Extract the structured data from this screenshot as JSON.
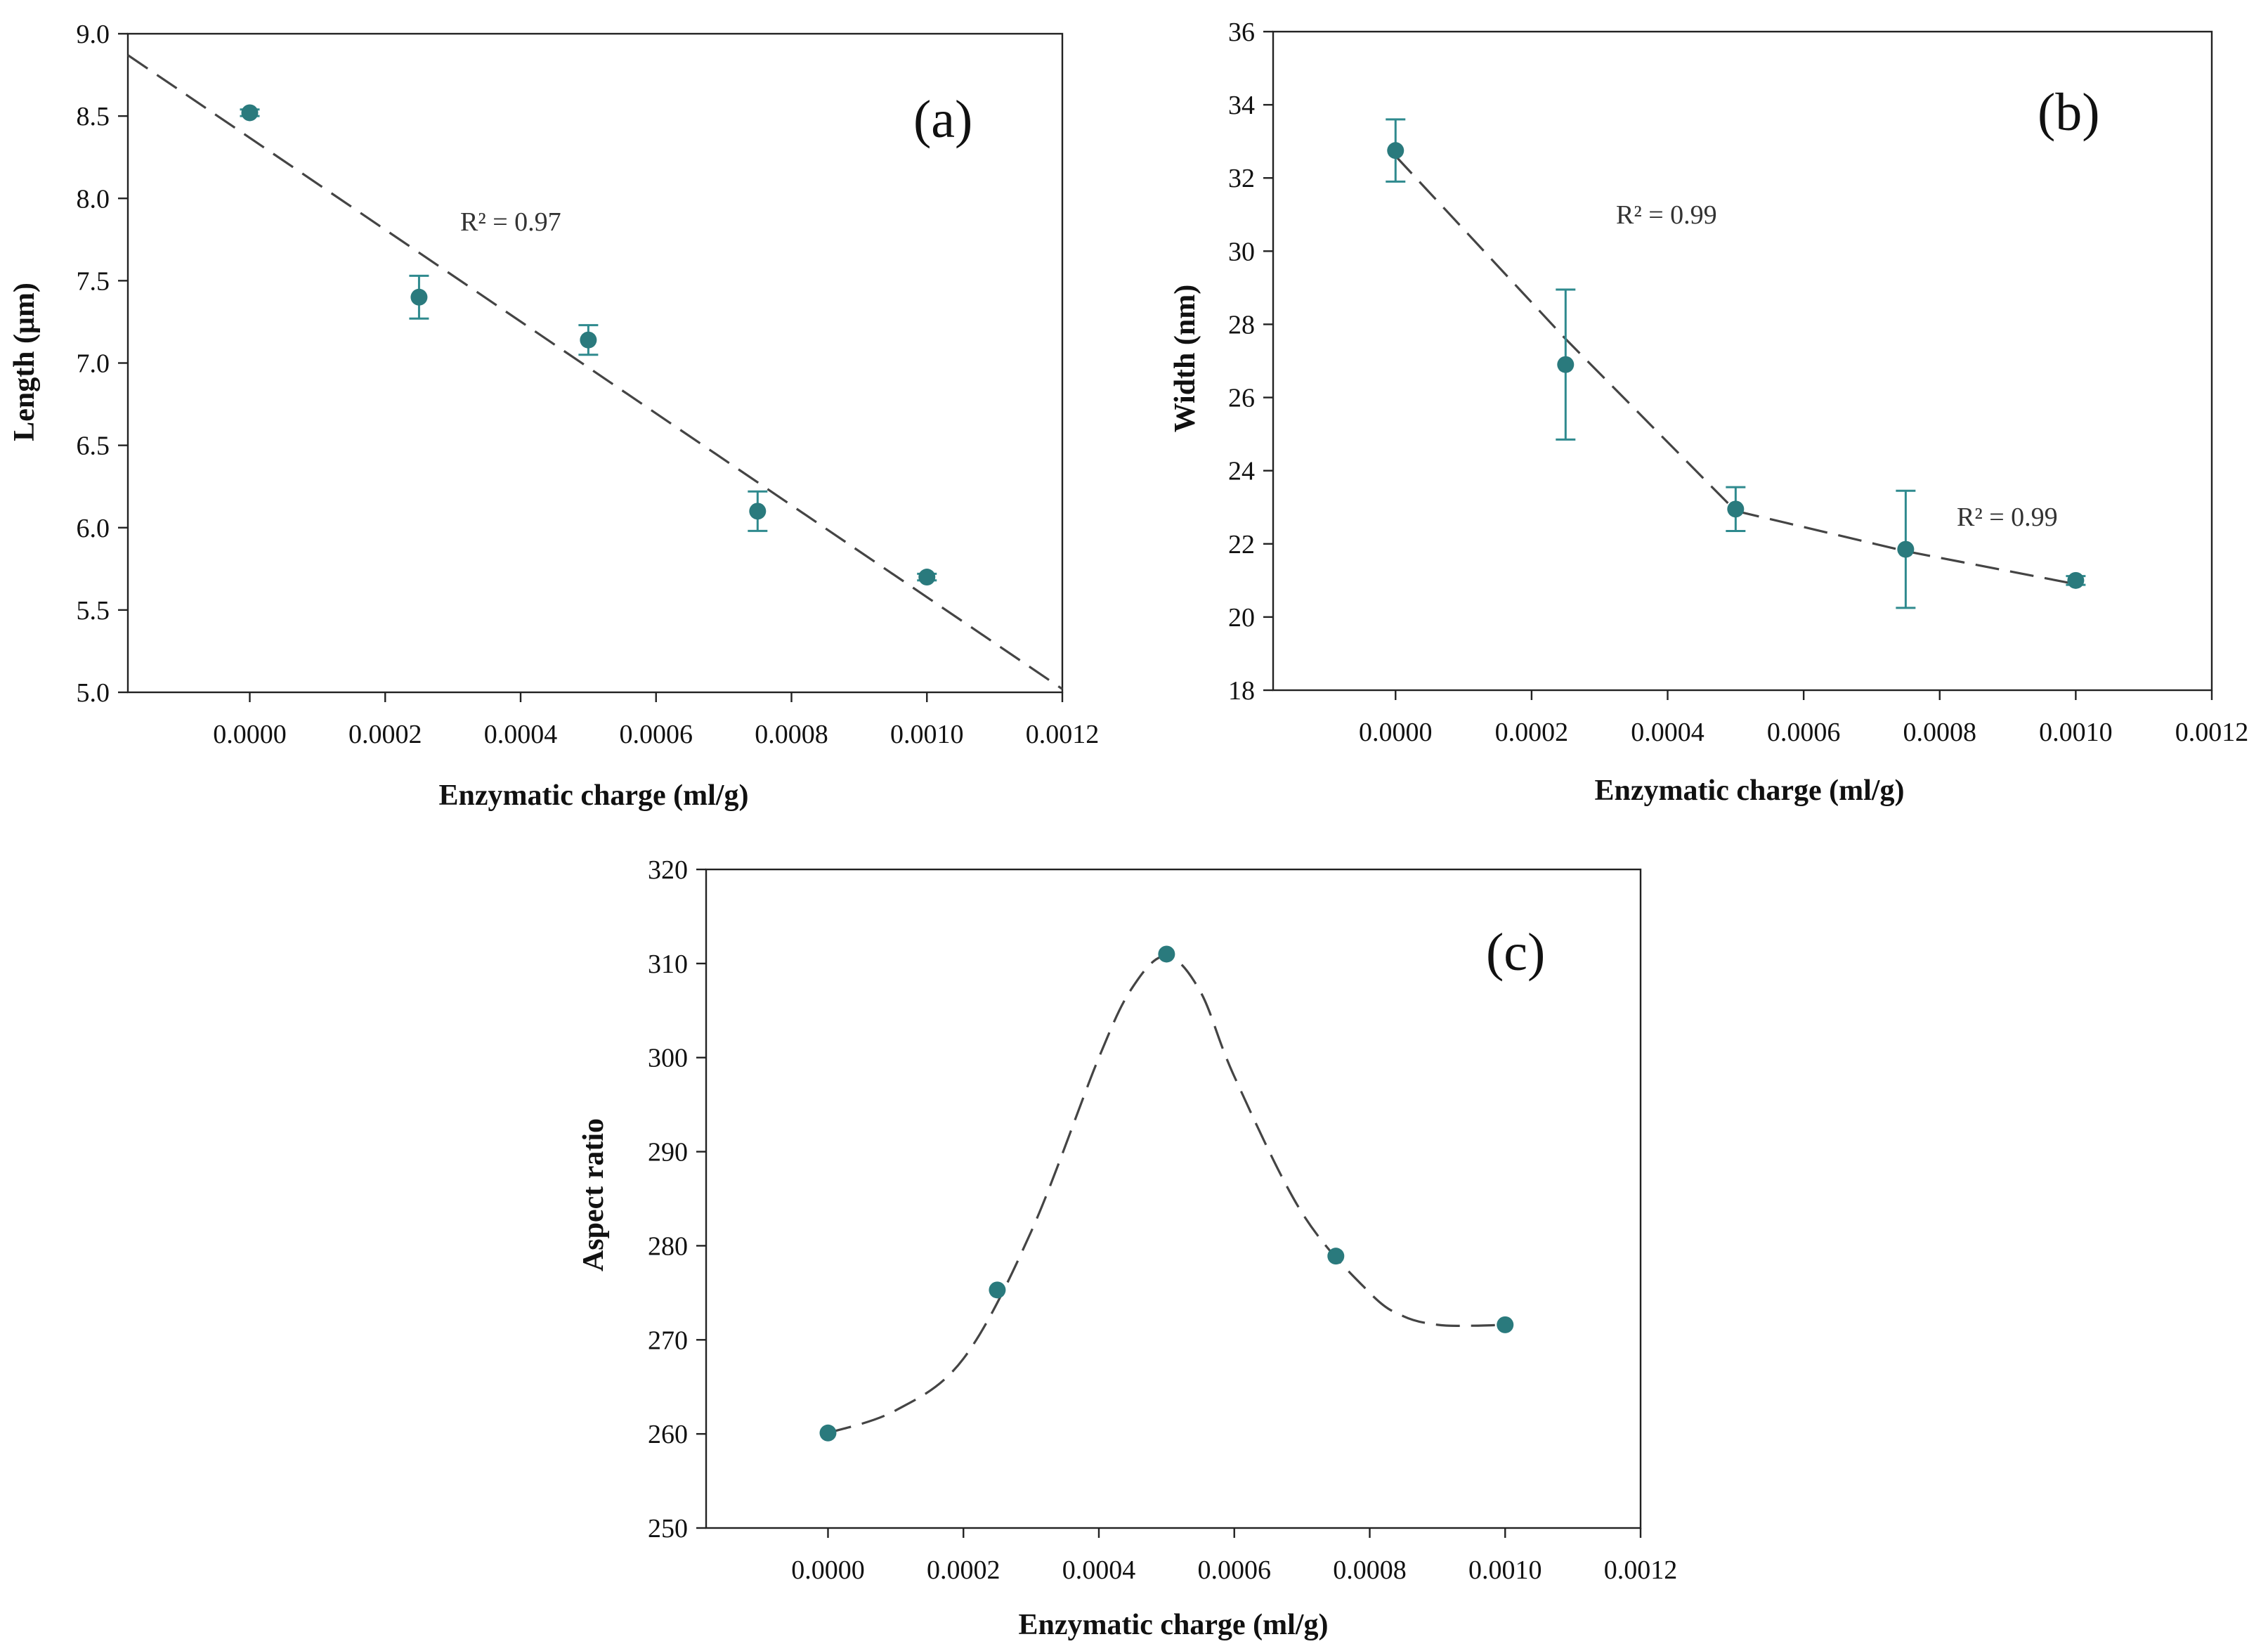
{
  "chart_data": [
    {
      "panel": "(a)",
      "type": "scatter",
      "xlabel": "Enzymatic charge (ml/g)",
      "ylabel": "Length (μm)",
      "xlim": [
        -0.00018,
        0.0012
      ],
      "ylim": [
        5.0,
        9.0
      ],
      "xticks": [
        "0.0000",
        "0.0002",
        "0.0004",
        "0.0006",
        "0.0008",
        "0.0010",
        "0.0012"
      ],
      "yticks": [
        "5.0",
        "5.5",
        "6.0",
        "6.5",
        "7.0",
        "7.5",
        "8.0",
        "8.5",
        "9.0"
      ],
      "points": [
        {
          "x": 0.0,
          "y": 8.52,
          "err": 0.02
        },
        {
          "x": 0.00025,
          "y": 7.4,
          "err": 0.13
        },
        {
          "x": 0.0005,
          "y": 7.14,
          "err": 0.09
        },
        {
          "x": 0.00075,
          "y": 6.1,
          "err": 0.12
        },
        {
          "x": 0.001,
          "y": 5.7,
          "err": 0.02
        }
      ],
      "fits": [
        {
          "kind": "linear",
          "x": [
            -0.00018,
            0.0012
          ],
          "y": [
            8.87,
            5.02
          ],
          "r2_label": "R² = 0.97"
        }
      ]
    },
    {
      "panel": "(b)",
      "type": "scatter",
      "xlabel": "Enzymatic charge (ml/g)",
      "ylabel": "Width (nm)",
      "xlim": [
        -0.00018,
        0.0012
      ],
      "ylim": [
        18,
        36
      ],
      "xticks": [
        "0.0000",
        "0.0002",
        "0.0004",
        "0.0006",
        "0.0008",
        "0.0010",
        "0.0012"
      ],
      "yticks": [
        "18",
        "20",
        "22",
        "24",
        "26",
        "28",
        "30",
        "32",
        "34",
        "36"
      ],
      "points": [
        {
          "x": 0.0,
          "y": 32.75,
          "err": 0.85
        },
        {
          "x": 0.00025,
          "y": 26.9,
          "err": 2.05
        },
        {
          "x": 0.0005,
          "y": 22.95,
          "err": 0.6
        },
        {
          "x": 0.00075,
          "y": 21.85,
          "err": 1.6
        },
        {
          "x": 0.001,
          "y": 21.0,
          "err": 0.12
        }
      ],
      "fits": [
        {
          "kind": "segment",
          "x": [
            0.0,
            0.00025,
            0.0005
          ],
          "y": [
            32.6,
            27.6,
            22.9
          ],
          "r2_label": "R² = 0.99"
        },
        {
          "kind": "segment",
          "x": [
            0.0005,
            0.00075,
            0.001
          ],
          "y": [
            22.9,
            21.8,
            20.9
          ],
          "r2_label": "R² = 0.99"
        }
      ]
    },
    {
      "panel": "(c)",
      "type": "scatter",
      "xlabel": "Enzymatic charge (ml/g)",
      "ylabel": "Aspect ratio",
      "xlim": [
        -0.00018,
        0.0012
      ],
      "ylim": [
        250,
        320
      ],
      "xticks": [
        "0.0000",
        "0.0002",
        "0.0004",
        "0.0006",
        "0.0008",
        "0.0010",
        "0.0012"
      ],
      "yticks": [
        "250",
        "260",
        "270",
        "280",
        "290",
        "300",
        "310",
        "320"
      ],
      "points": [
        {
          "x": 0.0,
          "y": 260.1
        },
        {
          "x": 0.00025,
          "y": 275.3
        },
        {
          "x": 0.0005,
          "y": 311.0
        },
        {
          "x": 0.00075,
          "y": 278.9
        },
        {
          "x": 0.001,
          "y": 271.6
        }
      ],
      "fits": [
        {
          "kind": "smooth",
          "x": [
            0.0,
            0.0001,
            0.0002,
            0.0003,
            0.0004,
            0.00045,
            0.0005,
            0.00055,
            0.0006,
            0.0007,
            0.0008,
            0.00085,
            0.0009,
            0.00095,
            0.001
          ],
          "y": [
            260.1,
            262.5,
            268.0,
            281.5,
            300.0,
            307.5,
            310.8,
            307.0,
            298.0,
            283.5,
            275.0,
            272.5,
            271.6,
            271.5,
            271.6
          ]
        }
      ]
    }
  ]
}
